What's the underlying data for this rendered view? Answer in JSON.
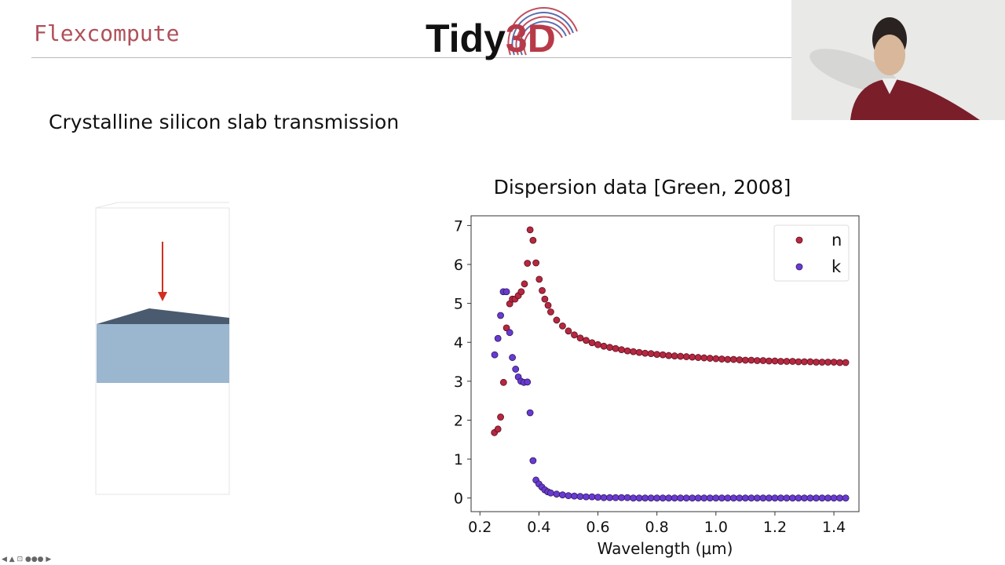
{
  "header": {
    "brand": "Flexcompute",
    "logo_text": "Tidy3D"
  },
  "slide": {
    "title": "Crystalline silicon slab transmission"
  },
  "colors": {
    "n": "#b5283f",
    "k": "#6a3ad0",
    "brand": "#b0505a",
    "slab_top": "#4a5b70",
    "slab_side": "#9bb6cf",
    "arrow": "#d03020"
  },
  "chart_data": {
    "type": "scatter",
    "title": "Dispersion data [Green, 2008]",
    "xlabel": "Wavelength (μm)",
    "ylabel": "",
    "xlim": [
      0.17,
      1.485
    ],
    "ylim": [
      -0.35,
      7.25
    ],
    "xticks": [
      "0.2",
      "0.4",
      "0.6",
      "0.8",
      "1.0",
      "1.2",
      "1.4"
    ],
    "yticks": [
      "0",
      "1",
      "2",
      "3",
      "4",
      "5",
      "6",
      "7"
    ],
    "grid": false,
    "legend": "top-right",
    "series": [
      {
        "name": "n",
        "points": [
          [
            0.249,
            1.68
          ],
          [
            0.261,
            1.77
          ],
          [
            0.27,
            2.08
          ],
          [
            0.28,
            2.97
          ],
          [
            0.29,
            4.37
          ],
          [
            0.301,
            4.99
          ],
          [
            0.31,
            5.11
          ],
          [
            0.319,
            5.11
          ],
          [
            0.33,
            5.2
          ],
          [
            0.34,
            5.3
          ],
          [
            0.351,
            5.5
          ],
          [
            0.361,
            6.03
          ],
          [
            0.37,
            6.89
          ],
          [
            0.38,
            6.62
          ],
          [
            0.39,
            6.04
          ],
          [
            0.401,
            5.62
          ],
          [
            0.411,
            5.33
          ],
          [
            0.42,
            5.11
          ],
          [
            0.431,
            4.95
          ],
          [
            0.44,
            4.78
          ],
          [
            0.46,
            4.57
          ],
          [
            0.48,
            4.42
          ],
          [
            0.5,
            4.29
          ],
          [
            0.52,
            4.19
          ],
          [
            0.54,
            4.11
          ],
          [
            0.56,
            4.05
          ],
          [
            0.58,
            3.99
          ],
          [
            0.6,
            3.94
          ],
          [
            0.62,
            3.9
          ],
          [
            0.64,
            3.87
          ],
          [
            0.66,
            3.84
          ],
          [
            0.68,
            3.81
          ],
          [
            0.7,
            3.78
          ],
          [
            0.72,
            3.76
          ],
          [
            0.74,
            3.74
          ],
          [
            0.76,
            3.72
          ],
          [
            0.78,
            3.71
          ],
          [
            0.8,
            3.69
          ],
          [
            0.82,
            3.68
          ],
          [
            0.84,
            3.66
          ],
          [
            0.86,
            3.65
          ],
          [
            0.88,
            3.64
          ],
          [
            0.9,
            3.63
          ],
          [
            0.92,
            3.62
          ],
          [
            0.94,
            3.61
          ],
          [
            0.96,
            3.6
          ],
          [
            0.98,
            3.59
          ],
          [
            1.0,
            3.58
          ],
          [
            1.02,
            3.57
          ],
          [
            1.04,
            3.56
          ],
          [
            1.06,
            3.56
          ],
          [
            1.08,
            3.55
          ],
          [
            1.1,
            3.54
          ],
          [
            1.12,
            3.54
          ],
          [
            1.14,
            3.53
          ],
          [
            1.16,
            3.53
          ],
          [
            1.18,
            3.52
          ],
          [
            1.2,
            3.52
          ],
          [
            1.22,
            3.51
          ],
          [
            1.24,
            3.51
          ],
          [
            1.26,
            3.51
          ],
          [
            1.28,
            3.5
          ],
          [
            1.3,
            3.5
          ],
          [
            1.32,
            3.5
          ],
          [
            1.34,
            3.49
          ],
          [
            1.36,
            3.49
          ],
          [
            1.38,
            3.49
          ],
          [
            1.4,
            3.49
          ],
          [
            1.42,
            3.48
          ],
          [
            1.44,
            3.48
          ]
        ]
      },
      {
        "name": "k",
        "points": [
          [
            0.25,
            3.68
          ],
          [
            0.261,
            4.1
          ],
          [
            0.27,
            4.69
          ],
          [
            0.279,
            5.3
          ],
          [
            0.29,
            5.3
          ],
          [
            0.301,
            4.25
          ],
          [
            0.31,
            3.61
          ],
          [
            0.321,
            3.31
          ],
          [
            0.33,
            3.11
          ],
          [
            0.339,
            3.0
          ],
          [
            0.349,
            2.97
          ],
          [
            0.361,
            2.98
          ],
          [
            0.37,
            2.19
          ],
          [
            0.38,
            0.96
          ],
          [
            0.39,
            0.46
          ],
          [
            0.4,
            0.36
          ],
          [
            0.41,
            0.28
          ],
          [
            0.42,
            0.21
          ],
          [
            0.43,
            0.16
          ],
          [
            0.44,
            0.13
          ],
          [
            0.46,
            0.1
          ],
          [
            0.48,
            0.08
          ],
          [
            0.5,
            0.06
          ],
          [
            0.52,
            0.05
          ],
          [
            0.54,
            0.04
          ],
          [
            0.56,
            0.03
          ],
          [
            0.58,
            0.03
          ],
          [
            0.6,
            0.02
          ],
          [
            0.62,
            0.01
          ],
          [
            0.64,
            0.01
          ],
          [
            0.66,
            0.01
          ],
          [
            0.68,
            0.01
          ],
          [
            0.7,
            0.01
          ],
          [
            0.72,
            0
          ],
          [
            0.74,
            0
          ],
          [
            0.76,
            0
          ],
          [
            0.78,
            0
          ],
          [
            0.8,
            0
          ],
          [
            0.82,
            0
          ],
          [
            0.84,
            0
          ],
          [
            0.86,
            0
          ],
          [
            0.88,
            0
          ],
          [
            0.9,
            0
          ],
          [
            0.92,
            0
          ],
          [
            0.94,
            0
          ],
          [
            0.96,
            0
          ],
          [
            0.98,
            0
          ],
          [
            1.0,
            0
          ],
          [
            1.02,
            0
          ],
          [
            1.04,
            0
          ],
          [
            1.06,
            0
          ],
          [
            1.08,
            0
          ],
          [
            1.1,
            0
          ],
          [
            1.12,
            0
          ],
          [
            1.14,
            0
          ],
          [
            1.16,
            0
          ],
          [
            1.18,
            0
          ],
          [
            1.2,
            0
          ],
          [
            1.22,
            0
          ],
          [
            1.24,
            0
          ],
          [
            1.26,
            0
          ],
          [
            1.28,
            0
          ],
          [
            1.3,
            0
          ],
          [
            1.32,
            0
          ],
          [
            1.34,
            0
          ],
          [
            1.36,
            0
          ],
          [
            1.38,
            0
          ],
          [
            1.4,
            0
          ],
          [
            1.42,
            0
          ],
          [
            1.44,
            0
          ]
        ]
      }
    ]
  }
}
